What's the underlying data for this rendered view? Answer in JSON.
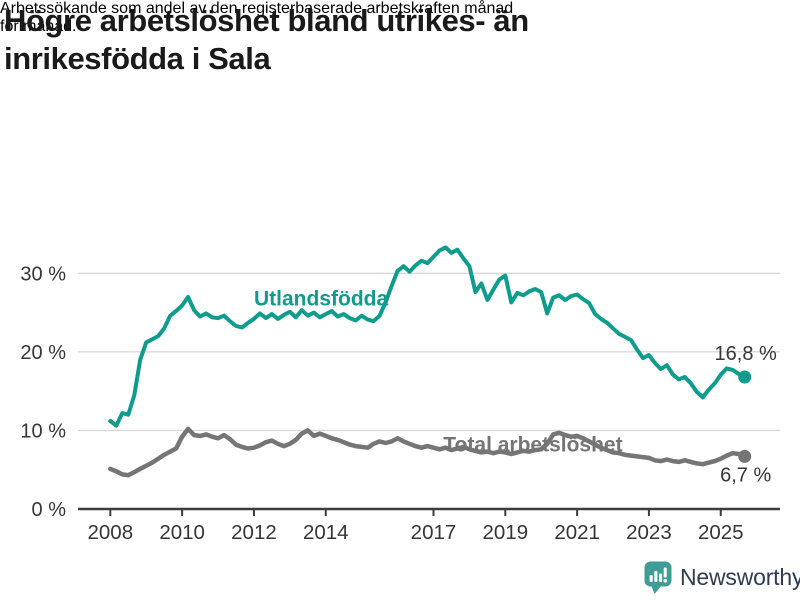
{
  "header": {
    "title_lines": [
      "Högre arbetslöshet bland utrikes- än",
      "inrikesfödda i Sala"
    ],
    "subtitle_lines": [
      "Arbetssökande som andel av den registerbaserade arbetskraften månad",
      "för månad."
    ]
  },
  "footer": {
    "brand": "Newsworthy",
    "brand_icon": "bar-chart-speech-bubble-icon",
    "brand_color": "#3f9d96",
    "brand_text_color": "#2f3e4f"
  },
  "chart_data": {
    "type": "line",
    "title": "Högre arbetslöshet bland utrikes- än inrikesfödda i Sala",
    "subtitle": "Arbetssökande som andel av den registerbaserade arbetskraften månad för månad.",
    "unit": "percent",
    "grid": "horizontal",
    "xlim": [
      2007.1,
      2026.65
    ],
    "ylim": [
      0,
      35
    ],
    "x_axis": {
      "ticks": [
        2008,
        2010,
        2012,
        2014,
        2017,
        2019,
        2021,
        2023,
        2025
      ],
      "tick_labels": [
        "2008",
        "2010",
        "2012",
        "2014",
        "2017",
        "2019",
        "2021",
        "2023",
        "2025"
      ]
    },
    "y_axis": {
      "ticks": [
        0,
        10,
        20,
        30
      ],
      "tick_labels": [
        "0 %",
        "10 %",
        "20 %",
        "30 %"
      ]
    },
    "x_start": 2008.0,
    "x_step_years": 0.1666667,
    "style": {
      "grid_color": "#d9d9d9",
      "axis_color": "#3d3d3d",
      "axis_text_color": "#363636",
      "value_label_color": "#363636"
    },
    "series": [
      {
        "id": "total",
        "name": "Total arbetslöshet",
        "color": "#757575",
        "width": 4.5,
        "end_label": "6,7 %",
        "end_value": 6.7,
        "label_at": {
          "x": 2019.77,
          "y": 8.27
        },
        "end_label_offset": {
          "dx": 1,
          "dy": 25
        },
        "values": [
          5.1,
          4.8,
          4.4,
          4.3,
          4.7,
          5.1,
          5.5,
          5.9,
          6.4,
          6.9,
          7.3,
          7.7,
          9.2,
          10.2,
          9.4,
          9.3,
          9.5,
          9.2,
          9.0,
          9.4,
          8.9,
          8.2,
          7.9,
          7.7,
          7.8,
          8.1,
          8.5,
          8.7,
          8.3,
          8.0,
          8.3,
          8.8,
          9.6,
          10.0,
          9.3,
          9.6,
          9.3,
          9.0,
          8.8,
          8.5,
          8.2,
          8.0,
          7.9,
          7.8,
          8.3,
          8.6,
          8.4,
          8.6,
          9.0,
          8.6,
          8.3,
          8.0,
          7.8,
          8.0,
          7.8,
          7.6,
          7.8,
          7.5,
          7.7,
          7.9,
          7.6,
          7.4,
          7.2,
          7.3,
          7.1,
          7.3,
          7.2,
          7.0,
          7.2,
          7.4,
          7.3,
          7.5,
          7.6,
          8.3,
          9.5,
          9.7,
          9.4,
          9.2,
          9.3,
          9.0,
          8.6,
          8.2,
          7.8,
          7.5,
          7.2,
          7.1,
          6.9,
          6.8,
          6.7,
          6.6,
          6.5,
          6.2,
          6.1,
          6.3,
          6.1,
          6.0,
          6.2,
          6.0,
          5.8,
          5.7,
          5.9,
          6.1,
          6.4,
          6.8,
          7.1,
          7.0,
          6.7
        ]
      },
      {
        "id": "utlandsfodda",
        "name": "Utlandsfödda",
        "color": "#0e9c8d",
        "width": 4,
        "end_label": "16,8 %",
        "end_value": 16.8,
        "label_at": {
          "x": 2013.87,
          "y": 26.85
        },
        "end_label_offset": {
          "dx": 1,
          "dy": -17
        },
        "values": [
          11.2,
          10.6,
          12.2,
          12.0,
          14.5,
          19.0,
          21.2,
          21.6,
          22.0,
          23.0,
          24.6,
          25.2,
          25.9,
          27.0,
          25.3,
          24.5,
          24.9,
          24.4,
          24.3,
          24.6,
          23.9,
          23.3,
          23.1,
          23.7,
          24.2,
          24.9,
          24.3,
          24.8,
          24.2,
          24.7,
          25.1,
          24.4,
          25.3,
          24.6,
          25.0,
          24.4,
          24.8,
          25.2,
          24.5,
          24.8,
          24.3,
          24.0,
          24.6,
          24.1,
          23.9,
          24.6,
          26.3,
          28.4,
          30.3,
          30.9,
          30.2,
          31.0,
          31.6,
          31.3,
          32.1,
          32.9,
          33.3,
          32.6,
          33.0,
          31.9,
          30.9,
          27.6,
          28.7,
          26.6,
          27.9,
          29.2,
          29.7,
          26.3,
          27.5,
          27.2,
          27.7,
          28.0,
          27.6,
          24.9,
          26.9,
          27.2,
          26.6,
          27.1,
          27.3,
          26.7,
          26.2,
          24.8,
          24.2,
          23.7,
          23.0,
          22.3,
          21.9,
          21.5,
          20.3,
          19.2,
          19.6,
          18.6,
          17.8,
          18.3,
          17.1,
          16.5,
          16.8,
          16.0,
          14.9,
          14.2,
          15.2,
          16.0,
          17.1,
          17.9,
          17.7,
          17.2,
          16.8
        ]
      }
    ]
  }
}
